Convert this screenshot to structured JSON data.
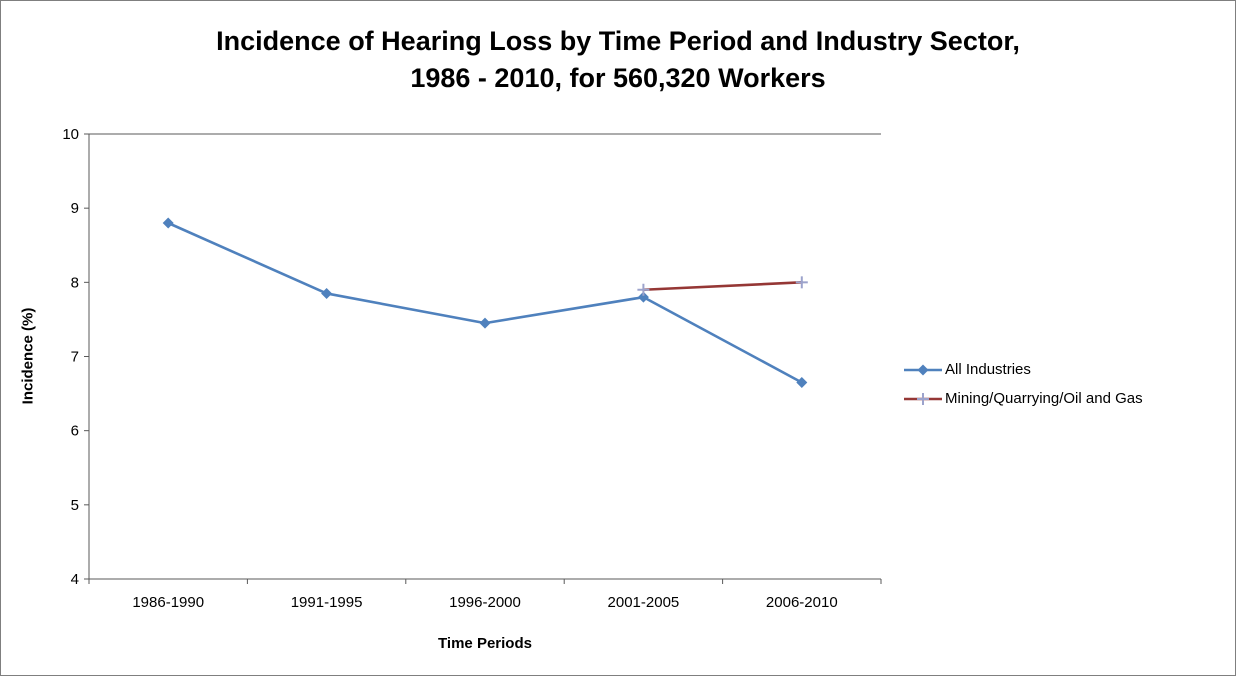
{
  "title": {
    "line1": "Incidence of Hearing Loss by Time Period and Industry Sector,",
    "line2": "1986 - 2010, for 560,320 Workers"
  },
  "chart_data": {
    "type": "line",
    "categories": [
      "1986-1990",
      "1991-1995",
      "1996-2000",
      "2001-2005",
      "2006-2010"
    ],
    "series": [
      {
        "name": "All Industries",
        "values": [
          8.8,
          7.85,
          7.45,
          7.8,
          6.65
        ],
        "color": "#4F81BD",
        "marker": "diamond",
        "marker_color": "#4F81BD"
      },
      {
        "name": "Mining/Quarrying/Oil and Gas",
        "values": [
          null,
          null,
          null,
          7.9,
          8.0
        ],
        "color": "#953735",
        "marker": "plus",
        "marker_color": "#9CA3CC"
      }
    ],
    "xlabel": "Time Periods",
    "ylabel": "Incidence (%)",
    "ylim": [
      4,
      10
    ],
    "ytick_step": 1,
    "grid": "top-border-only",
    "legend_position": "right",
    "axis_color": "#595959",
    "text_color": "#000000"
  }
}
